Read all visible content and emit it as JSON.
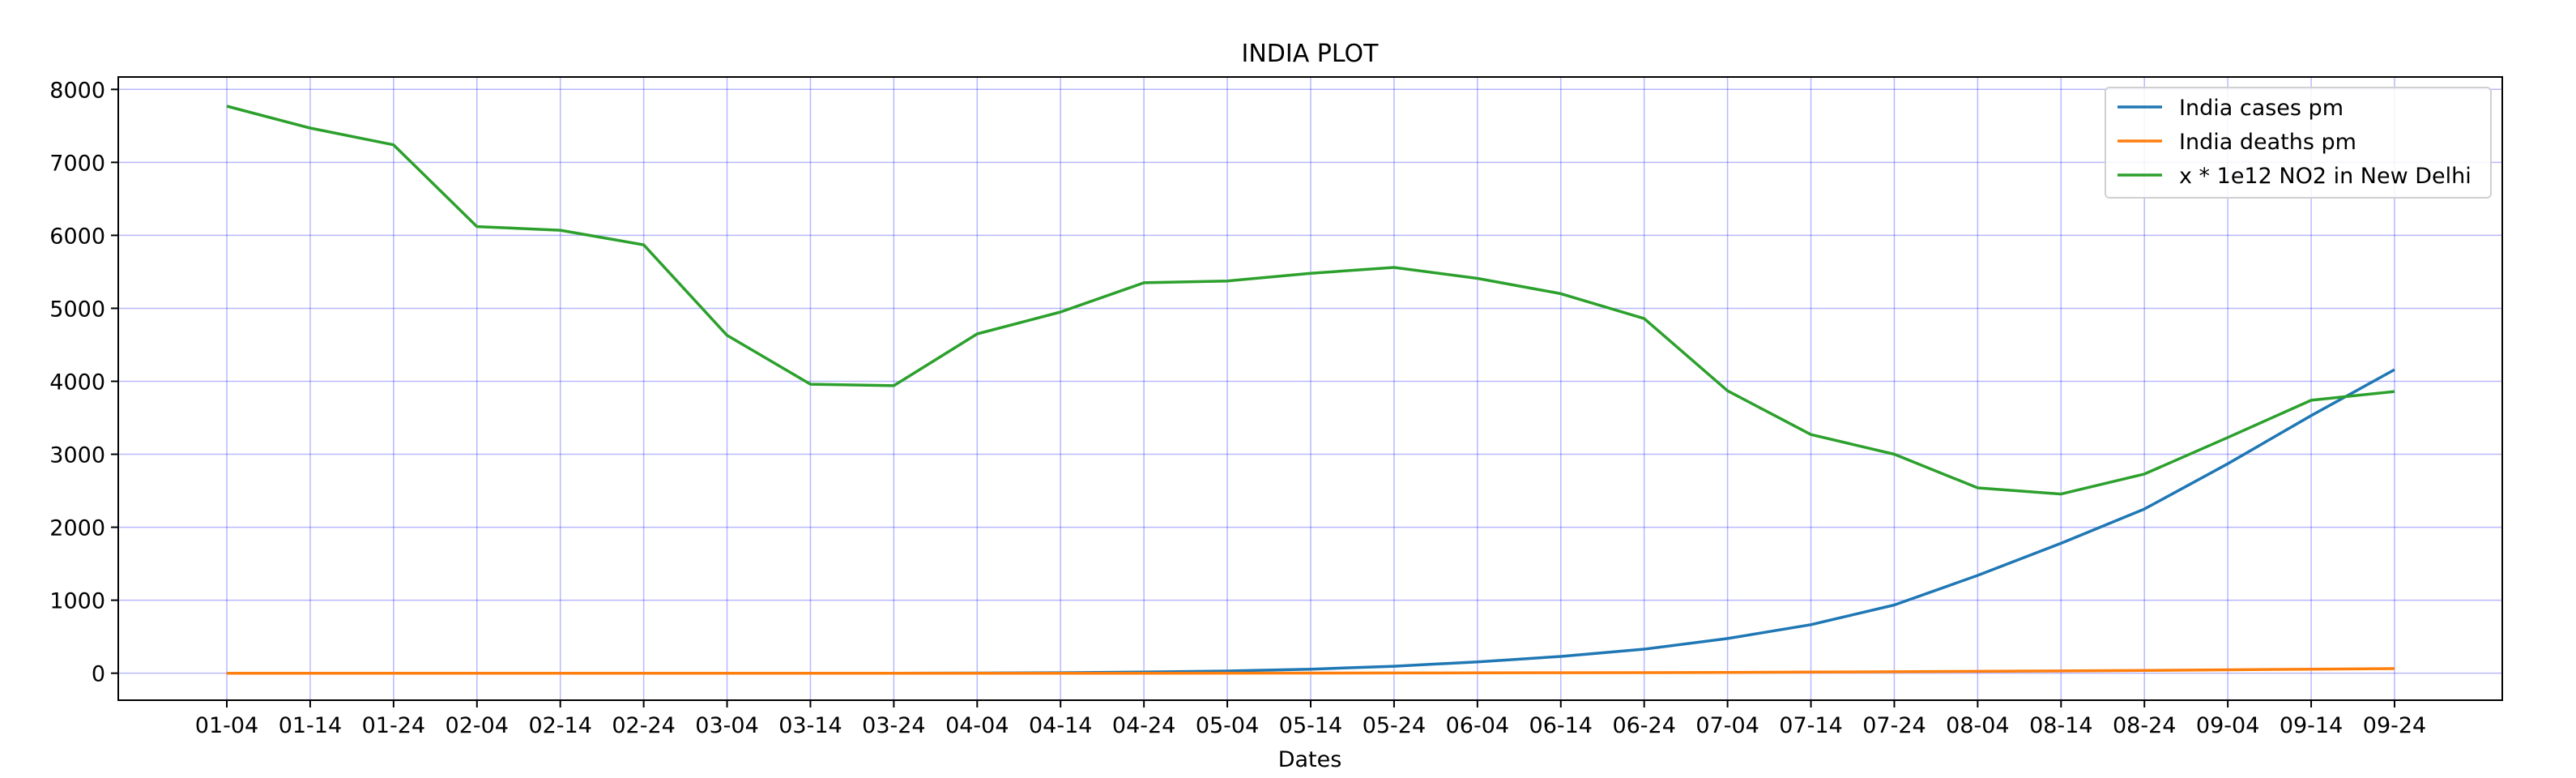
{
  "chart_data": {
    "type": "line",
    "title": "INDIA PLOT",
    "xlabel": "Dates",
    "ylabel": "",
    "categories": [
      "01-04",
      "01-14",
      "01-24",
      "02-04",
      "02-14",
      "02-24",
      "03-04",
      "03-14",
      "03-24",
      "04-04",
      "04-14",
      "04-24",
      "05-04",
      "05-14",
      "05-24",
      "06-04",
      "06-14",
      "06-24",
      "07-04",
      "07-14",
      "07-24",
      "08-04",
      "08-14",
      "08-24",
      "09-04",
      "09-14",
      "09-24"
    ],
    "ylim": [
      -370,
      8170
    ],
    "yticks": [
      0,
      1000,
      2000,
      3000,
      4000,
      5000,
      6000,
      7000,
      8000
    ],
    "grid": true,
    "legend_position": "top-right",
    "series": [
      {
        "name": "India cases pm",
        "color": "#1f77b4",
        "values": [
          0,
          0,
          0,
          0,
          0,
          0,
          0,
          0,
          0,
          2,
          7,
          15,
          30,
          55,
          95,
          155,
          230,
          330,
          475,
          665,
          935,
          1340,
          1780,
          2250,
          2870,
          3530,
          4160
        ]
      },
      {
        "name": "India deaths pm",
        "color": "#ff7f0e",
        "values": [
          0,
          0,
          0,
          0,
          0,
          0,
          0,
          0,
          0,
          0,
          0,
          0,
          1,
          2,
          3,
          4,
          6,
          8,
          11,
          15,
          20,
          25,
          31,
          38,
          46,
          55,
          63
        ]
      },
      {
        "name": "x * 1e12 NO2 in New Delhi",
        "color": "#2ca02c",
        "values": [
          7770,
          7470,
          7240,
          6120,
          6070,
          5870,
          4630,
          3960,
          3940,
          4650,
          4950,
          5350,
          5375,
          5480,
          5560,
          5410,
          5200,
          4860,
          3870,
          3270,
          3000,
          2540,
          2455,
          2730,
          3230,
          3740,
          3860
        ]
      }
    ]
  }
}
